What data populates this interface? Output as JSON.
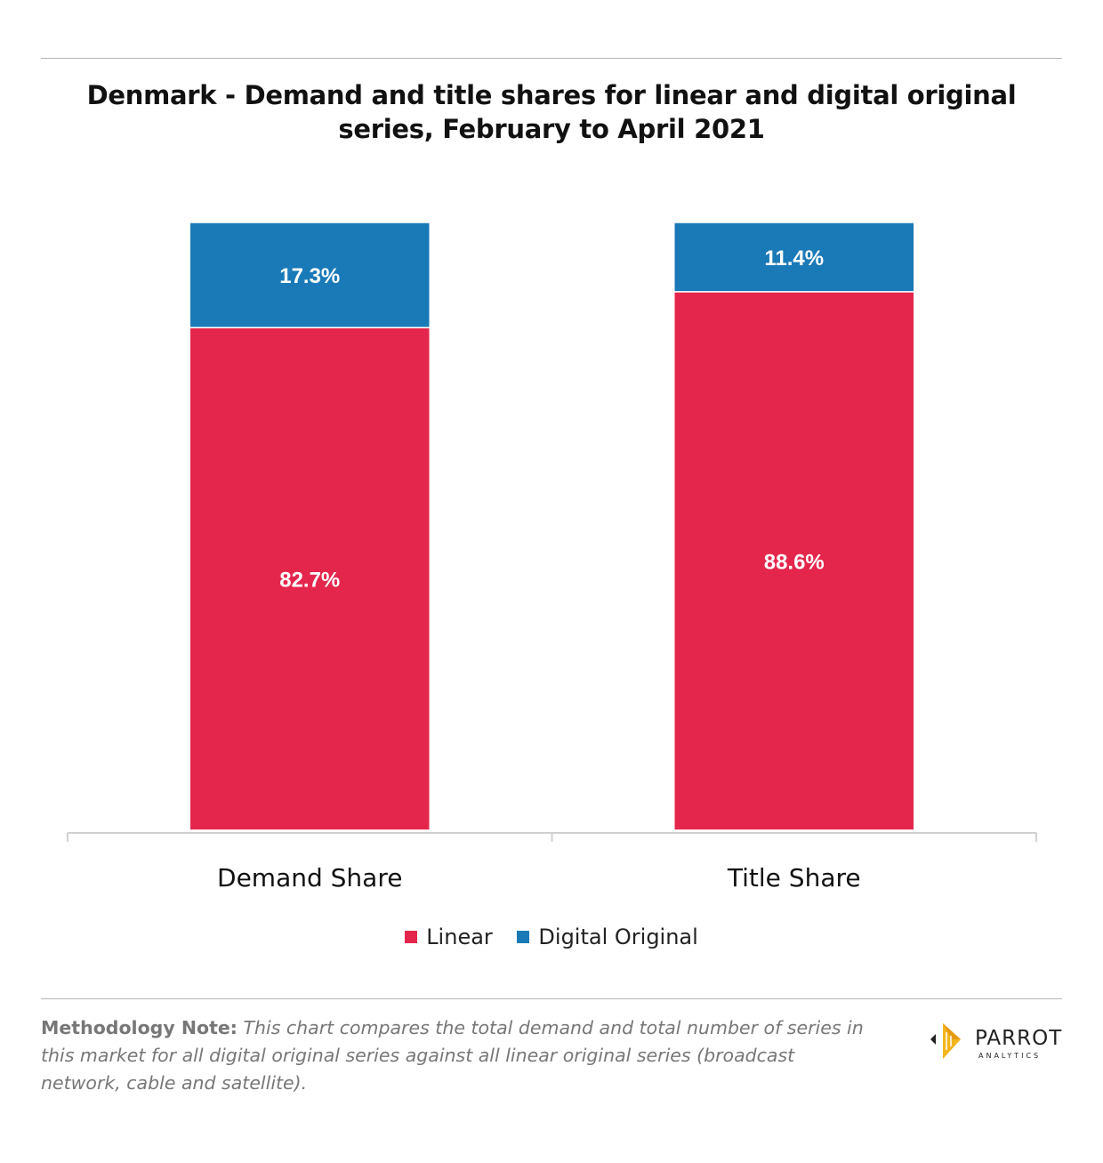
{
  "title_line1": "Denmark - Demand and title shares for linear and digital original",
  "title_line2": "series, February to April 2021",
  "chart_data": {
    "type": "bar",
    "stacked": true,
    "categories": [
      "Demand Share",
      "Title Share"
    ],
    "series": [
      {
        "name": "Linear",
        "color": "#e4264c",
        "values": [
          82.7,
          88.6
        ],
        "labels": [
          "82.7%",
          "88.6%"
        ]
      },
      {
        "name": "Digital Original",
        "color": "#1a7ab8",
        "values": [
          17.3,
          11.4
        ],
        "labels": [
          "17.3%",
          "11.4%"
        ]
      }
    ],
    "ylim": [
      0,
      100
    ],
    "grid": false,
    "legend_position": "bottom"
  },
  "legend": {
    "linear": "Linear",
    "digital": "Digital Original"
  },
  "note": {
    "lead": "Methodology Note:",
    "body": " This chart compares the total demand and total number of series in this market for all digital original series against all linear original series (broadcast network, cable and satellite)."
  },
  "logo": {
    "word": "PARROT",
    "sub": "ANALYTICS"
  }
}
